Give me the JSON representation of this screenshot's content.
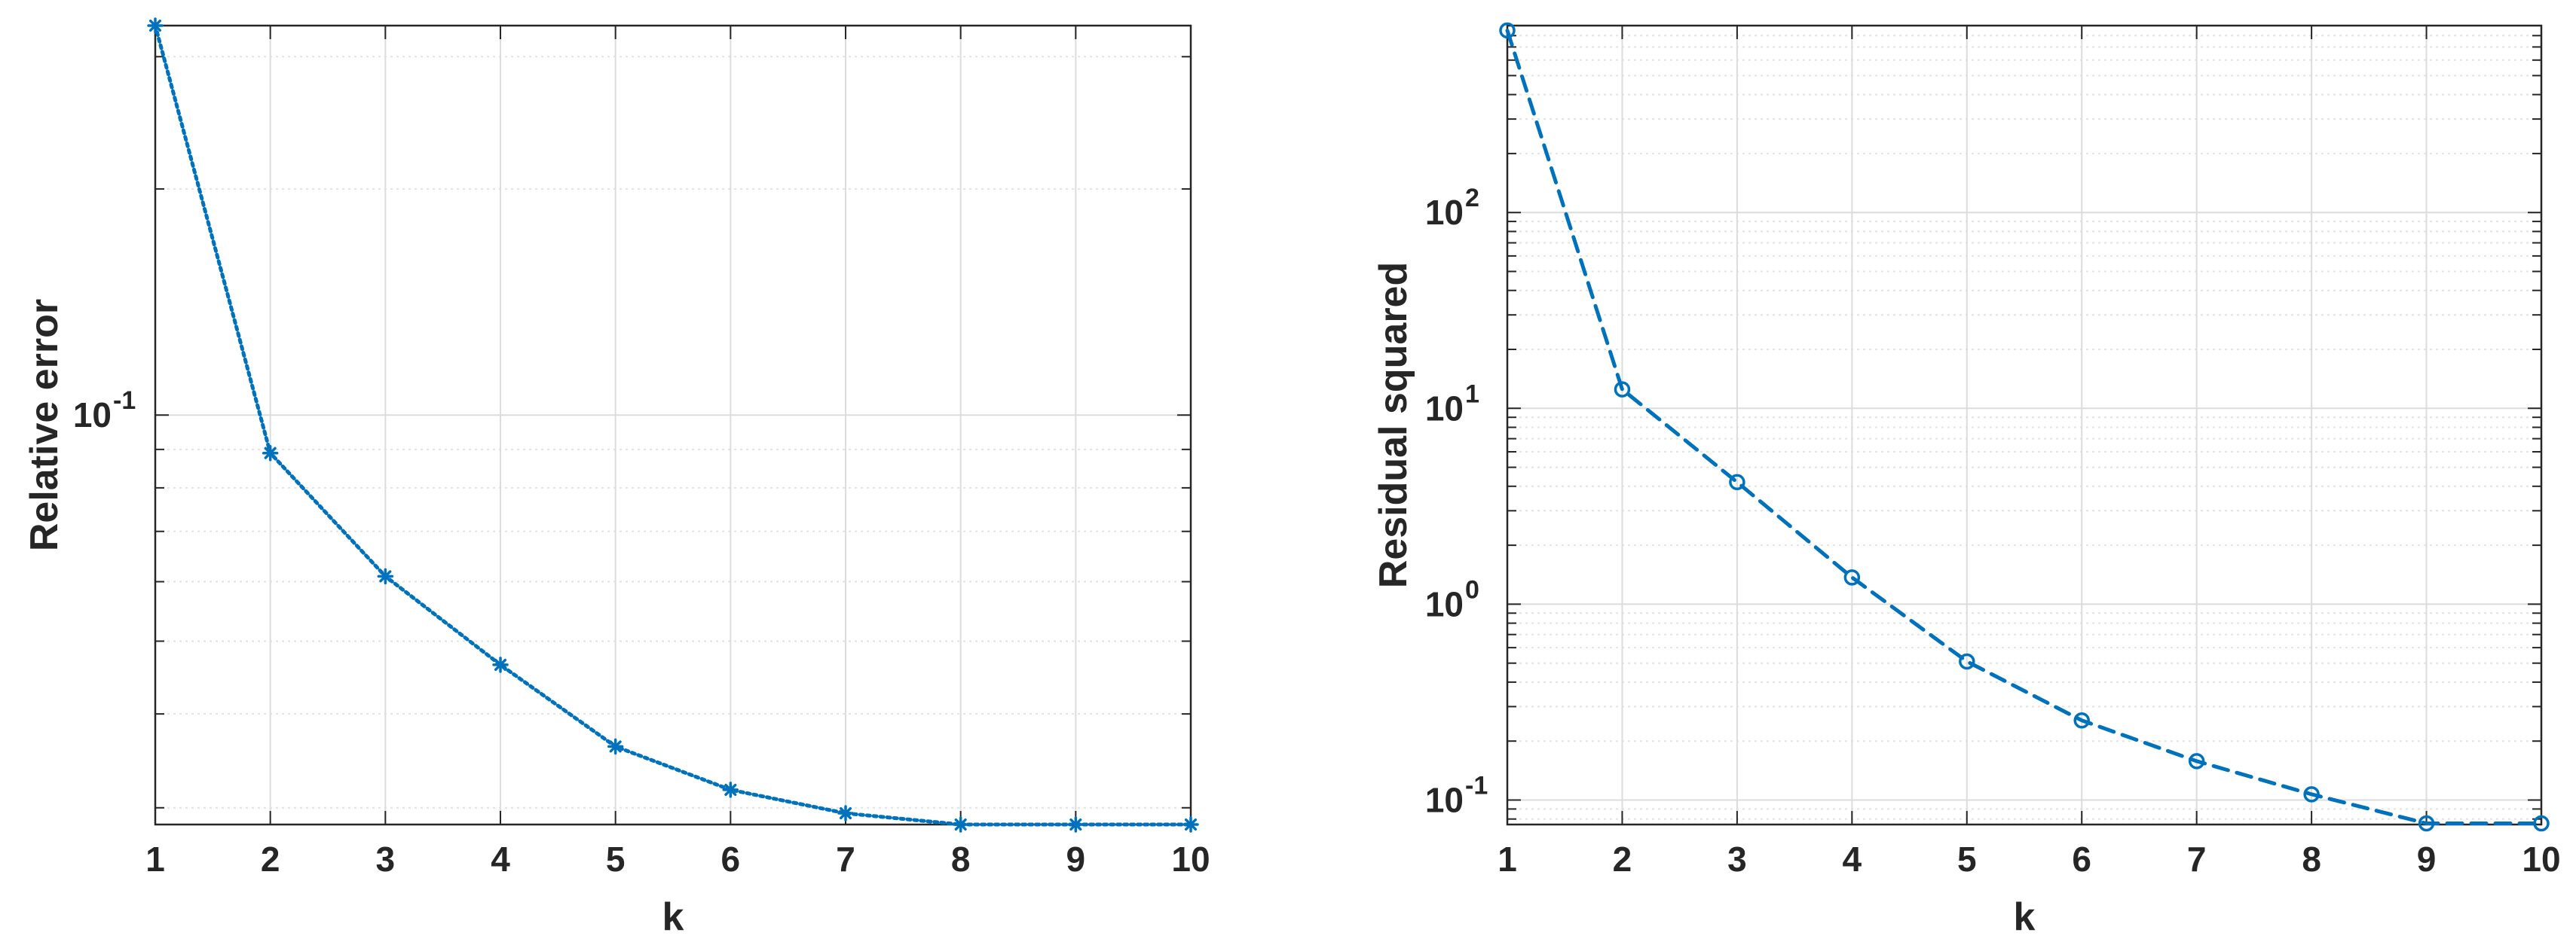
{
  "chart_data": [
    {
      "type": "line",
      "title": "",
      "xlabel": "k",
      "ylabel": "Relative error",
      "yscale": "log",
      "xlim": [
        1,
        10
      ],
      "ylim": [
        0.0285,
        0.33
      ],
      "grid": "on",
      "x": [
        1,
        2,
        3,
        4,
        5,
        6,
        7,
        8,
        9,
        10
      ],
      "xticks": [
        "1",
        "2",
        "3",
        "4",
        "5",
        "6",
        "7",
        "8",
        "9",
        "10"
      ],
      "yticks": [
        {
          "base": "10",
          "exp": "-1",
          "value": 0.1
        }
      ],
      "series": [
        {
          "values": [
            0.33,
            0.089,
            0.061,
            0.0465,
            0.0362,
            0.0317,
            0.0295,
            0.0285,
            0.0285,
            0.0285
          ],
          "color": "#0072BD",
          "line": "dotted",
          "marker": "asterisk"
        }
      ]
    },
    {
      "type": "line",
      "title": "",
      "xlabel": "k",
      "ylabel": "Residual squared",
      "yscale": "log",
      "xlim": [
        1,
        10
      ],
      "ylim": [
        0.075,
        900
      ],
      "grid": "on",
      "x": [
        1,
        2,
        3,
        4,
        5,
        6,
        7,
        8,
        9,
        10
      ],
      "xticks": [
        "1",
        "2",
        "3",
        "4",
        "5",
        "6",
        "7",
        "8",
        "9",
        "10"
      ],
      "yticks": [
        {
          "base": "10",
          "exp": "-1",
          "value": 0.1
        },
        {
          "base": "10",
          "exp": "0",
          "value": 1
        },
        {
          "base": "10",
          "exp": "1",
          "value": 10
        },
        {
          "base": "10",
          "exp": "2",
          "value": 100
        }
      ],
      "series": [
        {
          "values": [
            850,
            12.5,
            4.2,
            1.37,
            0.51,
            0.255,
            0.158,
            0.107,
            0.076,
            0.076
          ],
          "color": "#0072BD",
          "line": "dashed",
          "marker": "circle"
        }
      ]
    }
  ]
}
